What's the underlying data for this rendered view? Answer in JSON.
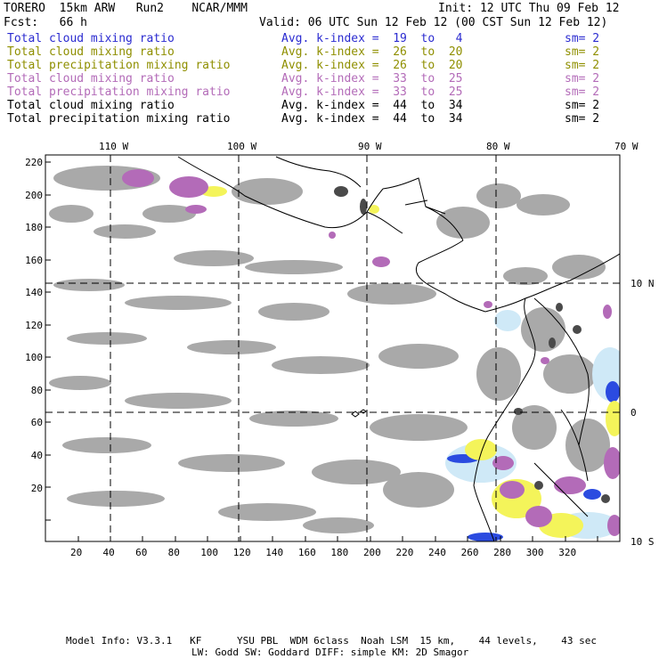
{
  "header": {
    "title_left": "TORERO  15km ARW   Run2    NCAR/MMM",
    "init": "Init: 12 UTC Thu 09 Feb 12",
    "fcst": "Fcst:   66 h",
    "valid": "Valid: 06 UTC Sun 12 Feb 12 (00 CST Sun 12 Feb 12)"
  },
  "legend": [
    {
      "field": "Total cloud mixing ratio",
      "kidx": "Avg. k-index =  19  to   4",
      "sm": "sm= 2",
      "color": "#2b2bd0"
    },
    {
      "field": "Total cloud mixing ratio",
      "kidx": "Avg. k-index =  26  to  20",
      "sm": "sm= 2",
      "color": "#8f8f00"
    },
    {
      "field": "Total precipitation mixing ratio",
      "kidx": "Avg. k-index =  26  to  20",
      "sm": "sm= 2",
      "color": "#8f8f00"
    },
    {
      "field": "Total cloud mixing ratio",
      "kidx": "Avg. k-index =  33  to  25",
      "sm": "sm= 2",
      "color": "#b36bb8"
    },
    {
      "field": "Total precipitation mixing ratio",
      "kidx": "Avg. k-index =  33  to  25",
      "sm": "sm= 2",
      "color": "#b36bb8"
    },
    {
      "field": "Total cloud mixing ratio",
      "kidx": "Avg. k-index =  44  to  34",
      "sm": "sm= 2",
      "color": "#000000"
    },
    {
      "field": "Total precipitation mixing ratio",
      "kidx": "Avg. k-index =  44  to  34",
      "sm": "sm= 2",
      "color": "#000000"
    }
  ],
  "axes": {
    "lon_labels": [
      "110 W",
      "100 W",
      "90 W",
      "80 W",
      "70 W"
    ],
    "lat_labels": [
      "10 N",
      "0",
      "10 S"
    ],
    "x_ticks": [
      "20",
      "40",
      "60",
      "80",
      "100",
      "120",
      "140",
      "160",
      "180",
      "200",
      "220",
      "240",
      "260",
      "280",
      "300",
      "320"
    ],
    "y_ticks": [
      "220",
      "200",
      "180",
      "160",
      "140",
      "120",
      "100",
      "80",
      "60",
      "40",
      "20"
    ]
  },
  "footer": {
    "line1": "Model Info: V3.3.1   KF      YSU PBL  WDM 6class  Noah LSM  15 km,    44 levels,    43 sec",
    "line2": "LW: Godd SW: Goddard DIFF: simple KM: 2D Smagor"
  }
}
